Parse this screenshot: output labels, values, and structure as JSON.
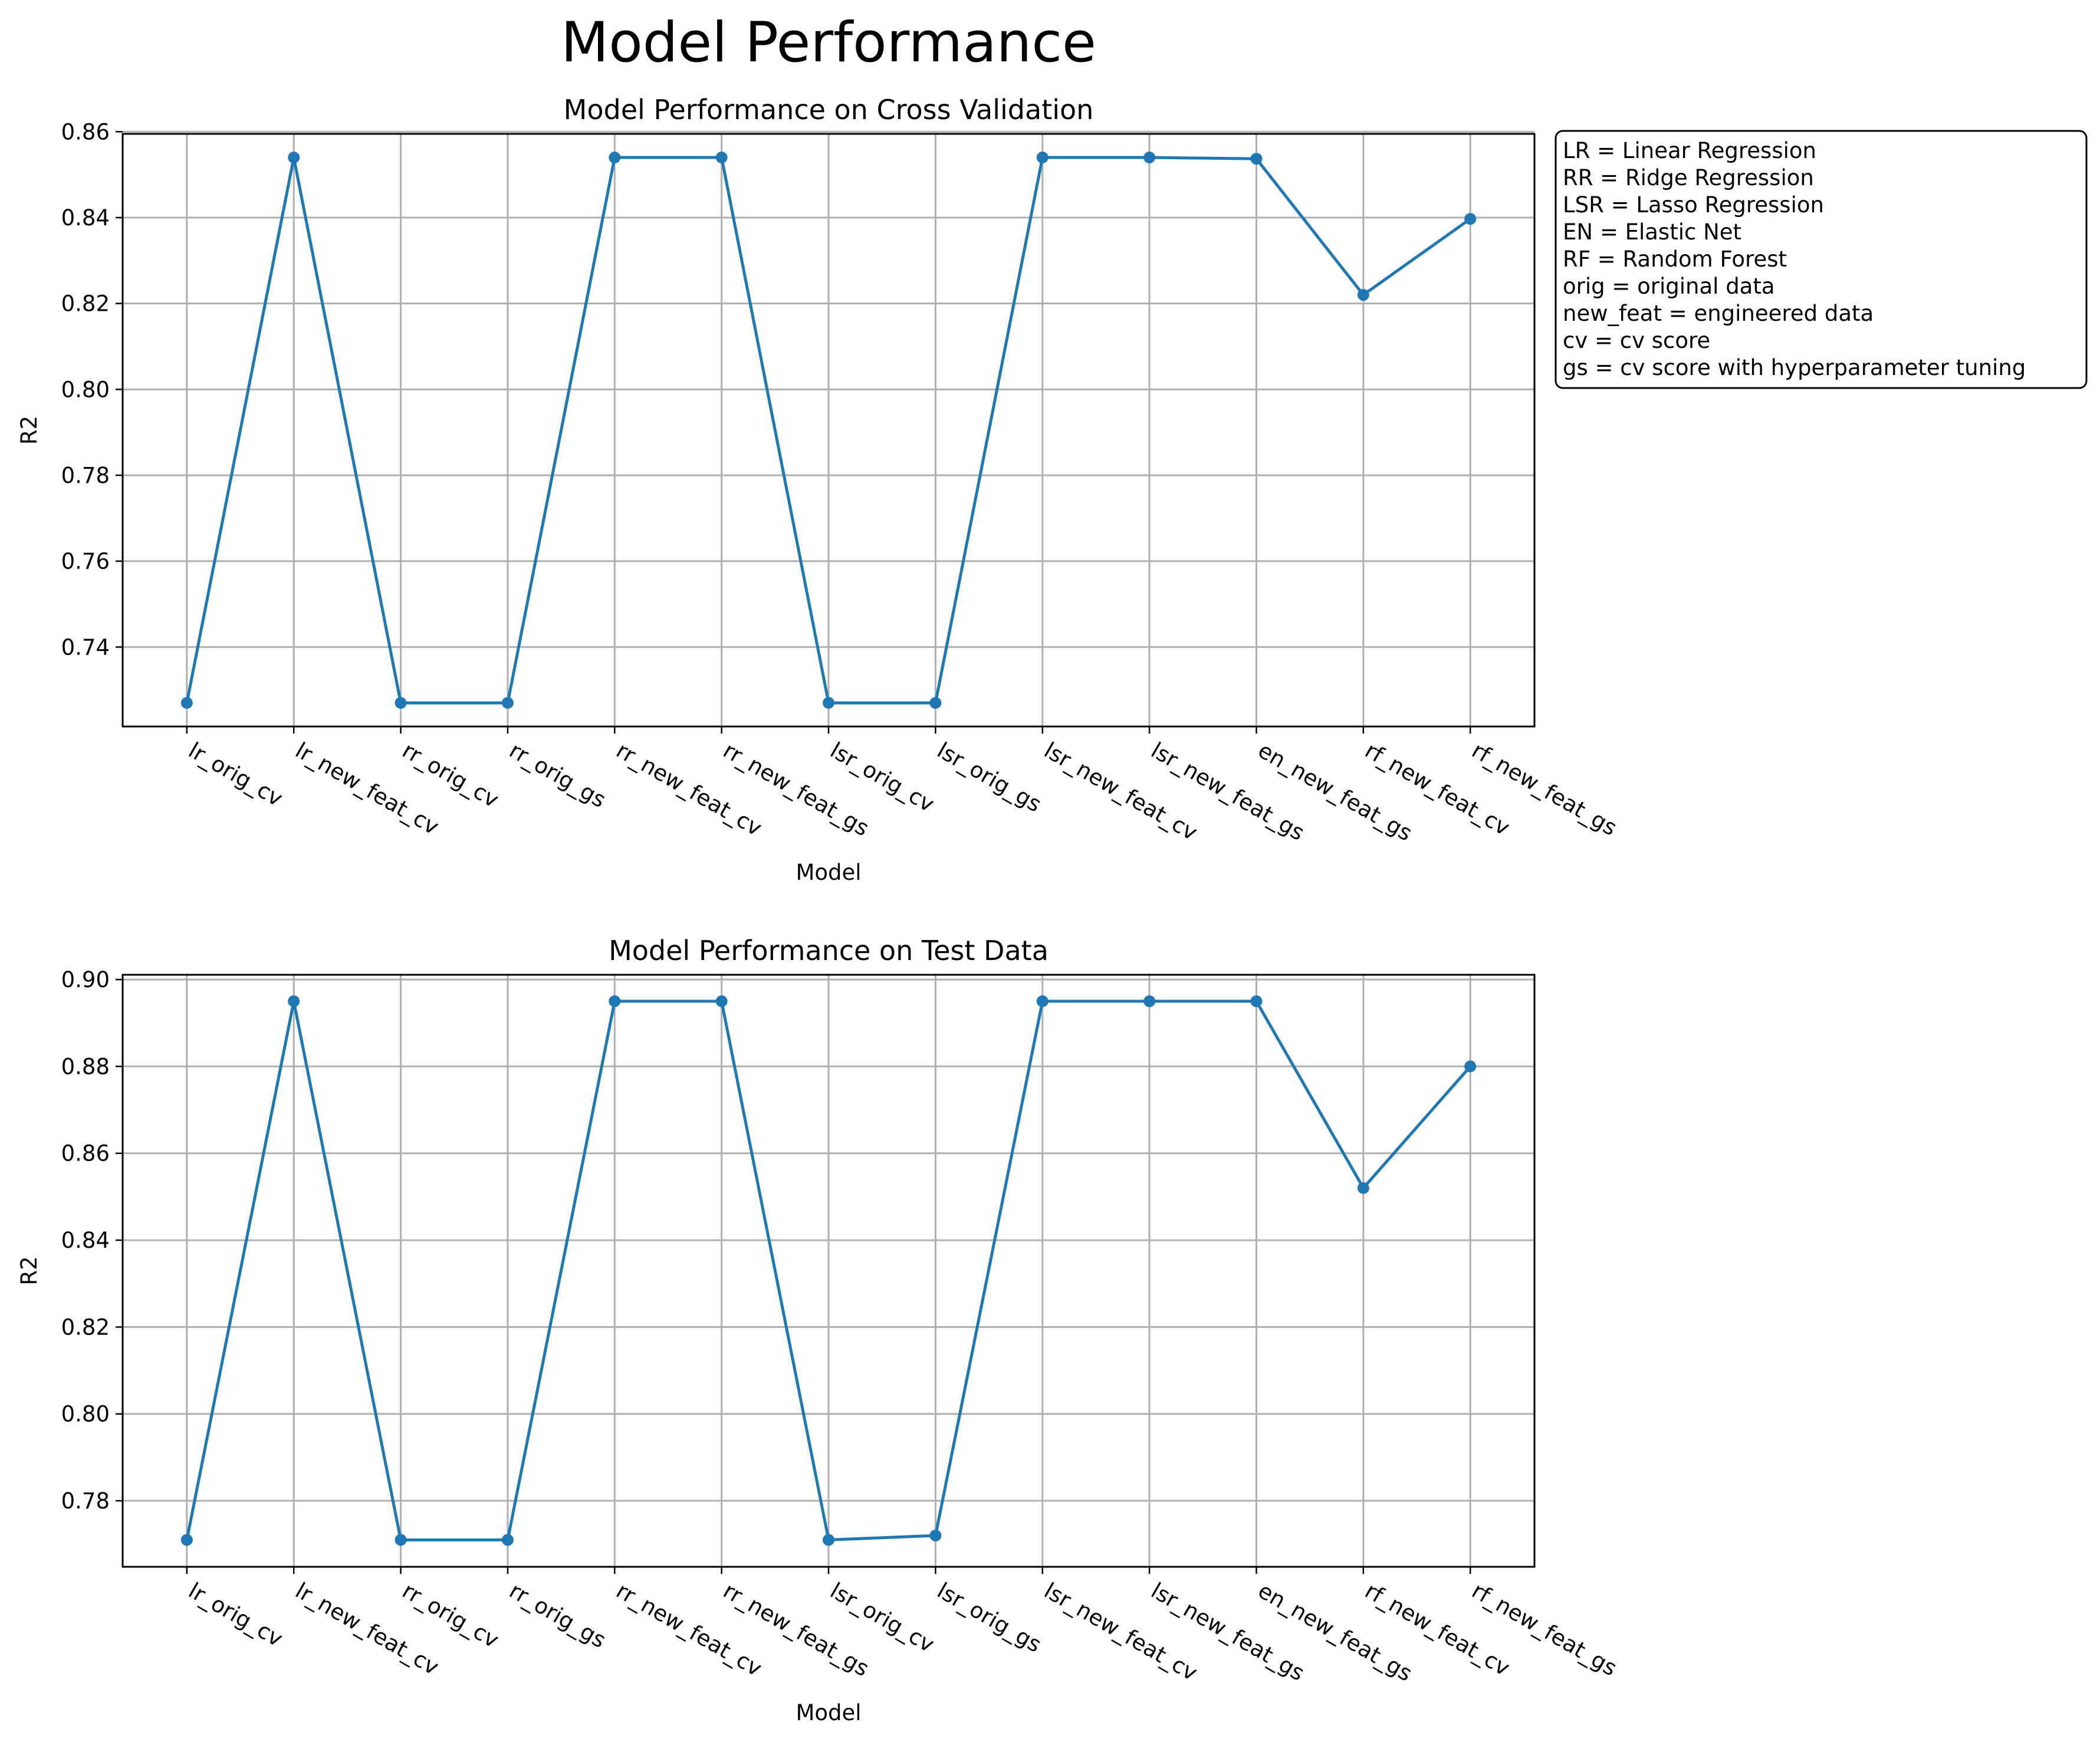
{
  "figure": {
    "suptitle": "Model Performance"
  },
  "legend_box": {
    "lines": [
      "LR = Linear Regression",
      "RR = Ridge Regression",
      "LSR = Lasso Regression",
      "EN = Elastic Net",
      "RF = Random Forest",
      "orig = original data",
      "new_feat = engineered data",
      "cv = cv score",
      "gs = cv score with hyperparameter tuning"
    ]
  },
  "colors": {
    "series": "#1f77b4",
    "grid": "#b0b0b0",
    "axes": "#000000"
  },
  "chart_data": [
    {
      "type": "line",
      "title": "Model Performance on Cross Validation",
      "xlabel": "Model",
      "ylabel": "R2",
      "categories": [
        "lr_orig_cv",
        "lr_new_feat_cv",
        "rr_orig_cv",
        "rr_orig_gs",
        "rr_new_feat_cv",
        "rr_new_feat_gs",
        "lsr_orig_cv",
        "lsr_orig_gs",
        "lsr_new_feat_cv",
        "lsr_new_feat_gs",
        "en_new_feat_gs",
        "rf_new_feat_cv",
        "rf_new_feat_gs"
      ],
      "values": [
        0.727,
        0.854,
        0.727,
        0.727,
        0.854,
        0.854,
        0.727,
        0.727,
        0.854,
        0.854,
        0.8537,
        0.822,
        0.8397
      ],
      "ylim": [
        0.7215,
        0.8595
      ],
      "yticks": [
        0.74,
        0.76,
        0.78,
        0.8,
        0.82,
        0.84,
        0.86
      ],
      "ytick_labels": [
        "0.74",
        "0.76",
        "0.78",
        "0.80",
        "0.82",
        "0.84",
        "0.86"
      ],
      "grid": true
    },
    {
      "type": "line",
      "title": "Model Performance on Test Data",
      "xlabel": "Model",
      "ylabel": "R2",
      "categories": [
        "lr_orig_cv",
        "lr_new_feat_cv",
        "rr_orig_cv",
        "rr_orig_gs",
        "rr_new_feat_cv",
        "rr_new_feat_gs",
        "lsr_orig_cv",
        "lsr_orig_gs",
        "lsr_new_feat_cv",
        "lsr_new_feat_gs",
        "en_new_feat_gs",
        "rf_new_feat_cv",
        "rf_new_feat_gs"
      ],
      "values": [
        0.771,
        0.895,
        0.771,
        0.771,
        0.895,
        0.895,
        0.771,
        0.772,
        0.895,
        0.895,
        0.895,
        0.852,
        0.88
      ],
      "ylim": [
        0.7648,
        0.9011
      ],
      "yticks": [
        0.78,
        0.8,
        0.82,
        0.84,
        0.86,
        0.88,
        0.9
      ],
      "ytick_labels": [
        "0.78",
        "0.80",
        "0.82",
        "0.84",
        "0.86",
        "0.88",
        "0.90"
      ],
      "grid": true
    }
  ]
}
